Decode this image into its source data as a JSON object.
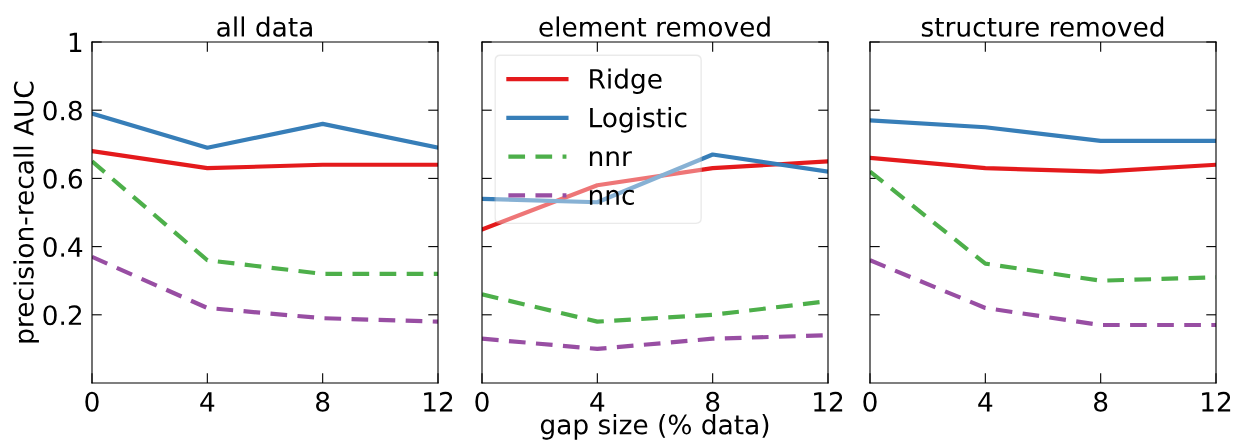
{
  "chart_data": [
    {
      "type": "line",
      "title": "all data",
      "ylabel": "precision-recall AUC",
      "x": [
        0,
        4,
        8,
        12
      ],
      "xlim": [
        0,
        12
      ],
      "xticks": [
        0,
        4,
        8,
        12
      ],
      "ylim": [
        0,
        1
      ],
      "yticks": [
        0.2,
        0.4,
        0.6,
        0.8,
        1
      ],
      "grid": false,
      "legend": false,
      "series": [
        {
          "color": "#e41a1c",
          "line_style": "solid",
          "values": [
            0.68,
            0.63,
            0.64,
            0.64
          ]
        },
        {
          "color": "#377eb8",
          "line_style": "solid",
          "values": [
            0.79,
            0.69,
            0.76,
            0.69
          ]
        },
        {
          "color": "#4daf4a",
          "line_style": "dashed",
          "values": [
            0.65,
            0.36,
            0.32,
            0.32
          ]
        },
        {
          "color": "#984ea3",
          "line_style": "dashed",
          "values": [
            0.37,
            0.22,
            0.19,
            0.18
          ]
        }
      ]
    },
    {
      "type": "line",
      "title": "element removed",
      "xlabel": "gap size (% data)",
      "x": [
        0,
        4,
        8,
        12
      ],
      "xlim": [
        0,
        12
      ],
      "xticks": [
        0,
        4,
        8,
        12
      ],
      "ylim": [
        0,
        1
      ],
      "yticks": [
        0.2,
        0.4,
        0.6,
        0.8,
        1
      ],
      "tick_labels": "x",
      "grid": false,
      "legend": "top left",
      "series": [
        {
          "name": "Ridge",
          "color": "#e41a1c",
          "line_style": "solid",
          "values": [
            0.45,
            0.58,
            0.63,
            0.65
          ]
        },
        {
          "name": "Logistic",
          "color": "#377eb8",
          "line_style": "solid",
          "values": [
            0.54,
            0.53,
            0.67,
            0.62
          ]
        },
        {
          "name": "nnr",
          "color": "#4daf4a",
          "line_style": "dashed",
          "values": [
            0.26,
            0.18,
            0.2,
            0.24
          ]
        },
        {
          "name": "nnc",
          "color": "#984ea3",
          "line_style": "dashed",
          "values": [
            0.13,
            0.1,
            0.13,
            0.14
          ]
        }
      ]
    },
    {
      "type": "line",
      "title": "structure removed",
      "x": [
        0,
        4,
        8,
        12
      ],
      "xlim": [
        0,
        12
      ],
      "xticks": [
        0,
        4,
        8,
        12
      ],
      "ylim": [
        0,
        1
      ],
      "yticks": [
        0.2,
        0.4,
        0.6,
        0.8,
        1
      ],
      "tick_labels": "x",
      "grid": false,
      "legend": false,
      "series": [
        {
          "color": "#e41a1c",
          "line_style": "solid",
          "values": [
            0.66,
            0.63,
            0.62,
            0.64
          ]
        },
        {
          "color": "#377eb8",
          "line_style": "solid",
          "values": [
            0.77,
            0.75,
            0.71,
            0.71
          ]
        },
        {
          "color": "#4daf4a",
          "line_style": "dashed",
          "values": [
            0.62,
            0.35,
            0.3,
            0.31
          ]
        },
        {
          "color": "#984ea3",
          "line_style": "dashed",
          "values": [
            0.36,
            0.22,
            0.17,
            0.17
          ]
        }
      ]
    }
  ]
}
